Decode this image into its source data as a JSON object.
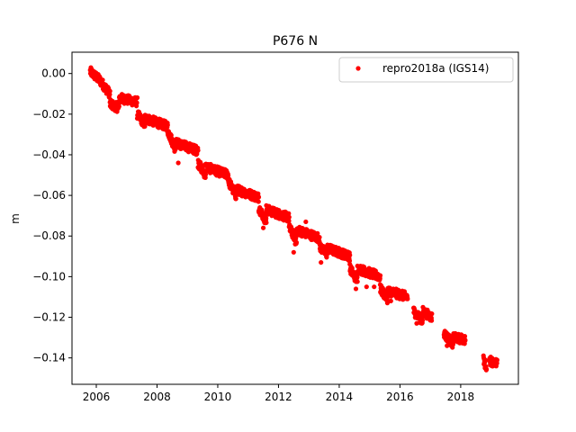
{
  "chart_data": {
    "type": "scatter",
    "title": "P676 N",
    "xlabel": "",
    "ylabel": "m",
    "xlim": [
      2005.2,
      2019.9
    ],
    "ylim": [
      -0.153,
      0.0105
    ],
    "x_ticks": [
      2006,
      2008,
      2010,
      2012,
      2014,
      2016,
      2018
    ],
    "x_tick_labels": [
      "2006",
      "2008",
      "2010",
      "2012",
      "2014",
      "2016",
      "2018"
    ],
    "y_ticks": [
      0.0,
      -0.02,
      -0.04,
      -0.06,
      -0.08,
      -0.1,
      -0.12,
      -0.14
    ],
    "y_tick_labels": [
      "0.00",
      "−0.02",
      "−0.04",
      "−0.06",
      "−0.08",
      "−0.10",
      "−0.12",
      "−0.14"
    ],
    "grid": false,
    "legend_position": "top-right",
    "series": [
      {
        "name": "repro2018a (IGS14)",
        "color": "#ff0000",
        "marker": "circle",
        "segments": [
          {
            "x_start": 2005.8,
            "x_end": 2006.1,
            "y_start": 0.001,
            "y_end": -0.003
          },
          {
            "x_start": 2006.1,
            "x_end": 2006.45,
            "y_start": -0.003,
            "y_end": -0.01
          },
          {
            "x_start": 2006.45,
            "x_end": 2006.75,
            "y_start": -0.015,
            "y_end": -0.017
          },
          {
            "x_start": 2006.75,
            "x_end": 2007.35,
            "y_start": -0.012,
            "y_end": -0.014
          },
          {
            "x_start": 2007.35,
            "x_end": 2007.6,
            "y_start": -0.02,
            "y_end": -0.025
          },
          {
            "x_start": 2007.6,
            "x_end": 2008.35,
            "y_start": -0.022,
            "y_end": -0.026
          },
          {
            "x_start": 2008.35,
            "x_end": 2008.6,
            "y_start": -0.028,
            "y_end": -0.037
          },
          {
            "x_start": 2008.6,
            "x_end": 2009.35,
            "y_start": -0.034,
            "y_end": -0.038
          },
          {
            "x_start": 2009.35,
            "x_end": 2009.6,
            "y_start": -0.044,
            "y_end": -0.05
          },
          {
            "x_start": 2009.6,
            "x_end": 2010.35,
            "y_start": -0.046,
            "y_end": -0.05
          },
          {
            "x_start": 2010.35,
            "x_end": 2010.6,
            "y_start": -0.053,
            "y_end": -0.06
          },
          {
            "x_start": 2010.6,
            "x_end": 2011.35,
            "y_start": -0.057,
            "y_end": -0.061
          },
          {
            "x_start": 2011.35,
            "x_end": 2011.6,
            "y_start": -0.066,
            "y_end": -0.073
          },
          {
            "x_start": 2011.6,
            "x_end": 2012.35,
            "y_start": -0.067,
            "y_end": -0.071
          },
          {
            "x_start": 2012.35,
            "x_end": 2012.6,
            "y_start": -0.076,
            "y_end": -0.082
          },
          {
            "x_start": 2012.6,
            "x_end": 2013.35,
            "y_start": -0.077,
            "y_end": -0.081
          },
          {
            "x_start": 2013.35,
            "x_end": 2013.6,
            "y_start": -0.085,
            "y_end": -0.089
          },
          {
            "x_start": 2013.6,
            "x_end": 2014.35,
            "y_start": -0.086,
            "y_end": -0.09
          },
          {
            "x_start": 2014.35,
            "x_end": 2014.6,
            "y_start": -0.096,
            "y_end": -0.102
          },
          {
            "x_start": 2014.6,
            "x_end": 2015.35,
            "y_start": -0.096,
            "y_end": -0.1
          },
          {
            "x_start": 2015.35,
            "x_end": 2015.6,
            "y_start": -0.106,
            "y_end": -0.111
          },
          {
            "x_start": 2015.6,
            "x_end": 2016.25,
            "y_start": -0.107,
            "y_end": -0.11
          },
          {
            "x_start": 2016.45,
            "x_end": 2016.75,
            "y_start": -0.117,
            "y_end": -0.122
          },
          {
            "x_start": 2016.75,
            "x_end": 2017.05,
            "y_start": -0.117,
            "y_end": -0.12
          },
          {
            "x_start": 2017.45,
            "x_end": 2017.75,
            "y_start": -0.128,
            "y_end": -0.133
          },
          {
            "x_start": 2017.75,
            "x_end": 2018.15,
            "y_start": -0.13,
            "y_end": -0.131
          },
          {
            "x_start": 2018.75,
            "x_end": 2018.85,
            "y_start": -0.141,
            "y_end": -0.144
          },
          {
            "x_start": 2018.95,
            "x_end": 2019.05,
            "y_start": -0.141,
            "y_end": -0.142
          },
          {
            "x_start": 2019.1,
            "x_end": 2019.2,
            "y_start": -0.142,
            "y_end": -0.143
          }
        ],
        "outliers": [
          {
            "x": 2008.7,
            "y": -0.044
          },
          {
            "x": 2011.5,
            "y": -0.076
          },
          {
            "x": 2012.5,
            "y": -0.088
          },
          {
            "x": 2012.55,
            "y": -0.084
          },
          {
            "x": 2012.9,
            "y": -0.073
          },
          {
            "x": 2013.4,
            "y": -0.093
          },
          {
            "x": 2014.55,
            "y": -0.106
          },
          {
            "x": 2014.9,
            "y": -0.105
          },
          {
            "x": 2015.15,
            "y": -0.105
          },
          {
            "x": 2015.7,
            "y": -0.112
          },
          {
            "x": 2016.55,
            "y": -0.123
          },
          {
            "x": 2017.55,
            "y": -0.134
          },
          {
            "x": 2018.8,
            "y": -0.145
          }
        ]
      }
    ]
  }
}
